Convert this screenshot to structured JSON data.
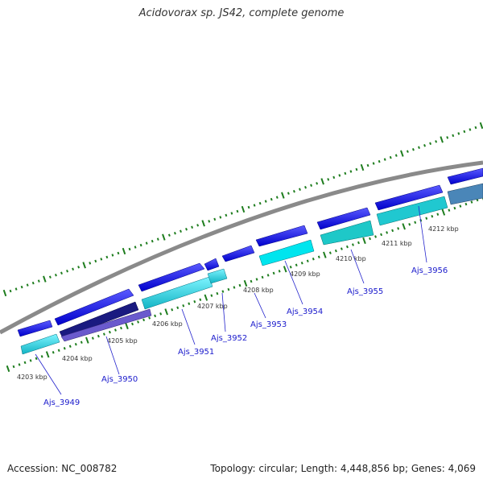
{
  "title": "Acidovorax sp. JS42, complete genome",
  "footer": {
    "accession": "Accession: NC_008782",
    "summary": "Topology: circular; Length: 4,448,856 bp; Genes: 4,069"
  },
  "colors": {
    "backbone": "#8a8a8a",
    "tick": "#1e7d1e",
    "gene_forward": "#1010e6",
    "gene_reverse": "#10b8c8",
    "label": "#1a1acc"
  },
  "kbp_labels": [
    "4203 kbp",
    "4204 kbp",
    "4205 kbp",
    "4206 kbp",
    "4207 kbp",
    "4208 kbp",
    "4209 kbp",
    "4210 kbp",
    "4211 kbp",
    "4212 kbp"
  ],
  "genes": [
    {
      "label": "Ajs_3949"
    },
    {
      "label": "Ajs_3950"
    },
    {
      "label": "Ajs_3951"
    },
    {
      "label": "Ajs_3952"
    },
    {
      "label": "Ajs_3953"
    },
    {
      "label": "Ajs_3954"
    },
    {
      "label": "Ajs_3955"
    },
    {
      "label": "Ajs_3956"
    }
  ]
}
